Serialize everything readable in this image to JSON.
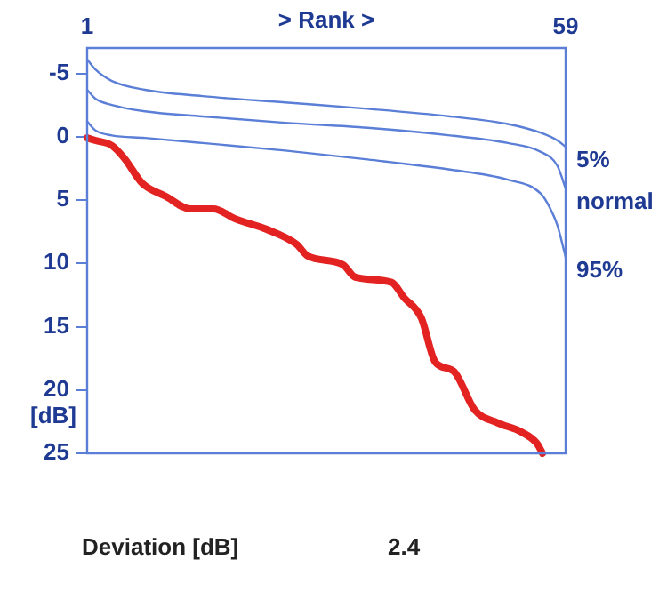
{
  "chart_data": {
    "type": "line",
    "xlabel": "> Rank >",
    "ylabel": "[dB]",
    "xlim": [
      1,
      59
    ],
    "xticks": [
      1,
      59
    ],
    "ylim": [
      25,
      -7
    ],
    "yticks": [
      -5,
      0,
      5,
      10,
      15,
      20,
      25
    ],
    "grid": false,
    "legend": false,
    "marker": "none",
    "line_style": "solid",
    "series": [
      {
        "name": "5%",
        "color": "#5b7fd6",
        "x": [
          1,
          2,
          4,
          8,
          15,
          25,
          35,
          45,
          52,
          56,
          58,
          59
        ],
        "values": [
          -6.1,
          -5.3,
          -4.4,
          -3.7,
          -3.2,
          -2.7,
          -2.2,
          -1.6,
          -1.0,
          -0.3,
          0.3,
          0.8
        ]
      },
      {
        "name": "normal",
        "color": "#5b7fd6",
        "x": [
          1,
          2,
          4,
          8,
          15,
          25,
          35,
          45,
          52,
          56,
          58,
          59
        ],
        "values": [
          -3.7,
          -3.0,
          -2.5,
          -2.0,
          -1.6,
          -1.1,
          -0.7,
          -0.1,
          0.5,
          1.2,
          2.3,
          4.1
        ]
      },
      {
        "name": "95%",
        "color": "#5b7fd6",
        "x": [
          1,
          2,
          4,
          8,
          15,
          25,
          35,
          45,
          52,
          56,
          57,
          58,
          59
        ],
        "values": [
          -1.2,
          -0.5,
          -0.1,
          0.1,
          0.5,
          1.1,
          1.8,
          2.6,
          3.4,
          4.5,
          5.5,
          7,
          9.5
        ]
      },
      {
        "color": "#e32222",
        "x": [
          1,
          2,
          4,
          5.5,
          7.7,
          10.5,
          13.5,
          16.3,
          19,
          22.7,
          26.4,
          27.7,
          32,
          33.5,
          37.9,
          39.4,
          41.5,
          43.2,
          45.4,
          48,
          50.8,
          53.6,
          55.5,
          56.2
        ],
        "values": [
          0.1,
          0.3,
          0.7,
          1.7,
          3.7,
          4.7,
          5.7,
          5.7,
          6.5,
          7.3,
          8.5,
          9.4,
          10.1,
          11.1,
          11.5,
          12.7,
          14.3,
          17.8,
          18.5,
          21.6,
          22.6,
          23.3,
          24.2,
          25
        ]
      }
    ],
    "annotations": [
      "Deviation [dB]",
      "2.4"
    ]
  }
}
